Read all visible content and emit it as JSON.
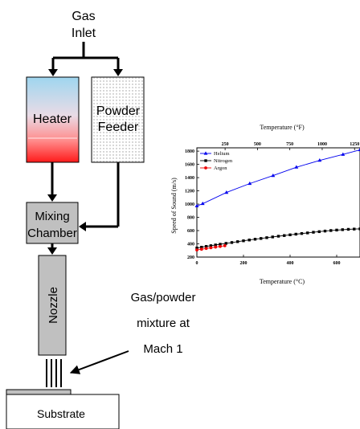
{
  "schematic": {
    "gas_inlet_line1": "Gas",
    "gas_inlet_line2": "Inlet",
    "heater": "Heater",
    "powder_feeder_line1": "Powder",
    "powder_feeder_line2": "Feeder",
    "mixing_chamber_line1": "Mixing",
    "mixing_chamber_line2": "Chamber",
    "nozzle": "Nozzle",
    "annotation_line1": "Gas/powder",
    "annotation_line2": "mixture at",
    "annotation_line3": "Mach 1",
    "substrate": "Substrate",
    "colors": {
      "heater_top": "#9fd6ef",
      "heater_bottom": "#ff1a1a",
      "box_gray": "#c0c0c0",
      "powder_dots": "#9a9a9a"
    }
  },
  "chart_data": {
    "type": "line",
    "xlabel": "Temperature (°C)",
    "top_xlabel": "Temperature (°F)",
    "ylabel": "Speed of Sound (m/s)",
    "xlim": [
      0,
      700
    ],
    "ylim": [
      200,
      1850
    ],
    "x_ticks": [
      0,
      200,
      400,
      600
    ],
    "y_ticks": [
      200,
      400,
      600,
      800,
      1000,
      1200,
      1400,
      1600,
      1800
    ],
    "top_ticks": [
      250,
      500,
      750,
      1000,
      1250
    ],
    "legend_position": "top-left",
    "series": [
      {
        "name": "Helium",
        "color": "#0000ee",
        "marker": "triangle",
        "x": [
          0,
          25,
          127,
          227,
          327,
          427,
          527,
          627,
          700
        ],
        "y": [
          972,
          1007,
          1175,
          1310,
          1430,
          1557,
          1660,
          1750,
          1820
        ]
      },
      {
        "name": "Nitrogen",
        "color": "#000000",
        "marker": "square",
        "x": [
          0,
          20,
          40,
          60,
          80,
          100,
          125,
          150,
          175,
          200,
          225,
          250,
          275,
          300,
          325,
          350,
          375,
          400,
          425,
          450,
          475,
          500,
          525,
          550,
          575,
          600,
          625,
          650,
          675,
          700
        ],
        "y": [
          337,
          349,
          361,
          372,
          383,
          394,
          407,
          420,
          433,
          446,
          458,
          470,
          481,
          493,
          504,
          515,
          525,
          536,
          546,
          556,
          565,
          575,
          584,
          593,
          601,
          608,
          614,
          619,
          623,
          626
        ]
      },
      {
        "name": "Argon",
        "color": "#ee0000",
        "marker": "circle",
        "x": [
          0,
          20,
          40,
          60,
          80,
          100,
          120
        ],
        "y": [
          308,
          319,
          330,
          341,
          351,
          361,
          371
        ]
      }
    ]
  }
}
